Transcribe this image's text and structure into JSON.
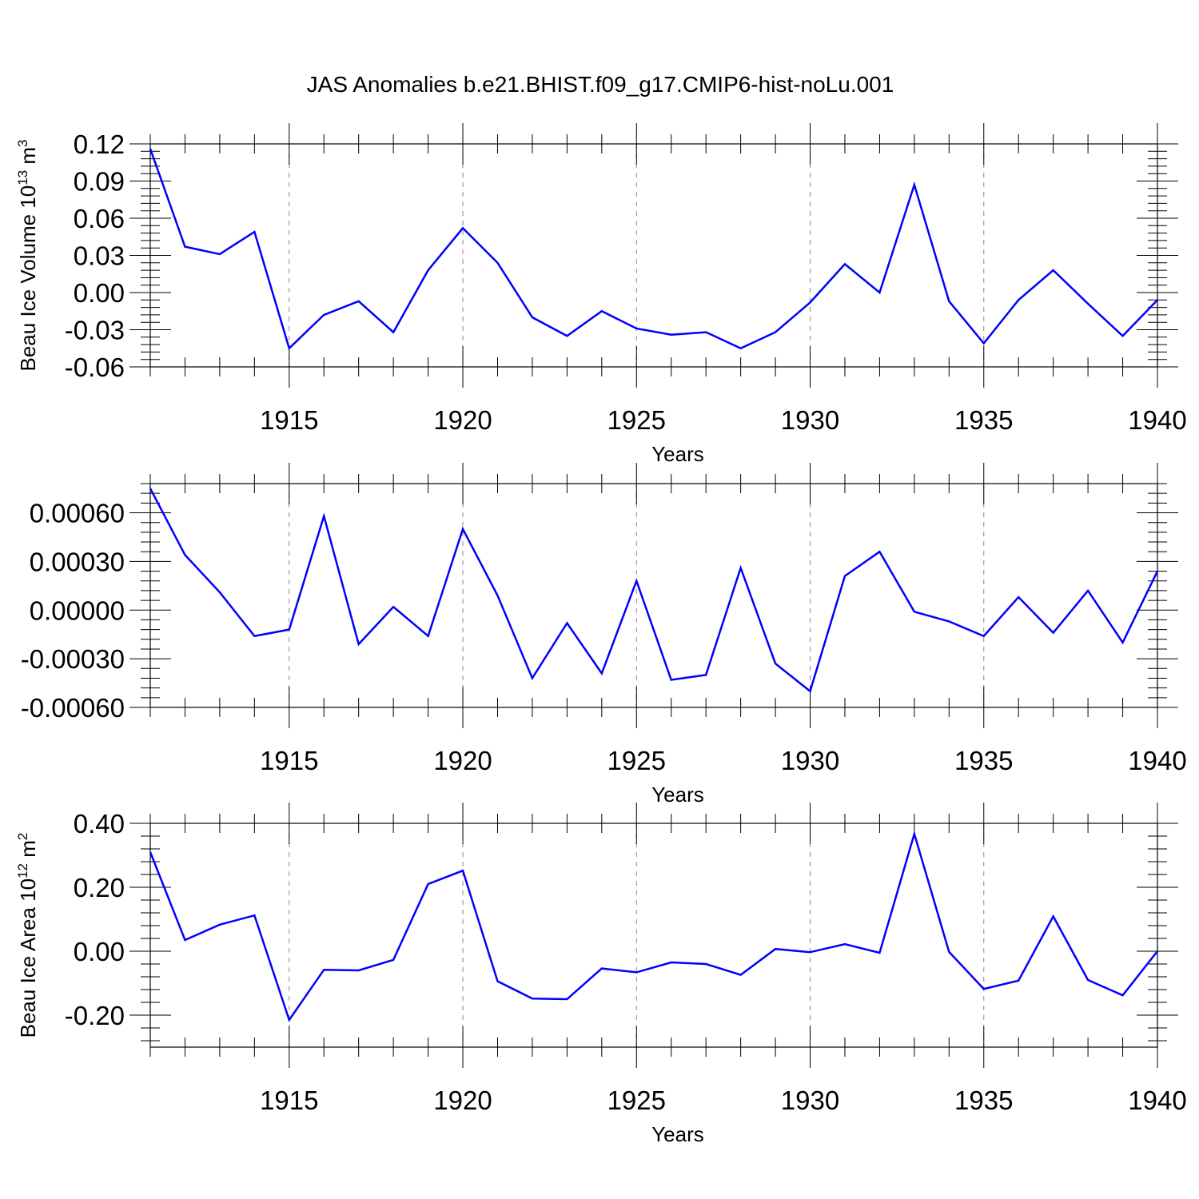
{
  "title": "JAS Anomalies b.e21.BHIST.f09_g17.CMIP6-hist-noLu.001",
  "colors": {
    "line": "#0000ff",
    "axes": "#000000",
    "grid": "#888888"
  },
  "chart_data": [
    {
      "type": "line",
      "ylabel": "Beau Ice Volume 10",
      "ylabel_sup": "13",
      "ylabel_unit": "m",
      "ylabel_unit_sup": "3",
      "xlabel": "Years",
      "xlim": [
        1911,
        1940
      ],
      "ylim": [
        -0.06,
        0.12
      ],
      "yticks": [
        -0.06,
        -0.03,
        0.0,
        0.03,
        0.06,
        0.09,
        0.12
      ],
      "ytick_labels": [
        "-0.06",
        "-0.03",
        "0.00",
        "0.03",
        "0.06",
        "0.09",
        "0.12"
      ],
      "xticks": [
        1915,
        1920,
        1925,
        1930,
        1935,
        1940
      ],
      "xtick_labels": [
        "1915",
        "1920",
        "1925",
        "1930",
        "1935",
        "1940"
      ],
      "grid": "vertical dashed at major x ticks",
      "x": [
        1911,
        1912,
        1913,
        1914,
        1915,
        1916,
        1917,
        1918,
        1919,
        1920,
        1921,
        1922,
        1923,
        1924,
        1925,
        1926,
        1927,
        1928,
        1929,
        1930,
        1931,
        1932,
        1933,
        1934,
        1935,
        1936,
        1937,
        1938,
        1939,
        1940
      ],
      "series": [
        {
          "values": [
            0.116,
            0.037,
            0.031,
            0.049,
            -0.045,
            -0.018,
            -0.007,
            -0.032,
            0.018,
            0.052,
            0.024,
            -0.02,
            -0.035,
            -0.015,
            -0.029,
            -0.034,
            -0.032,
            -0.045,
            -0.032,
            -0.008,
            0.023,
            0.0,
            0.087,
            -0.007,
            -0.041,
            -0.006,
            0.018,
            -0.009,
            -0.035,
            -0.006
          ]
        }
      ]
    },
    {
      "type": "line",
      "ylabel": "",
      "xlabel": "Years",
      "xlim": [
        1911,
        1940
      ],
      "ylim": [
        -0.0006,
        0.00078
      ],
      "yticks": [
        -0.0006,
        -0.0003,
        0.0,
        0.0003,
        0.0006
      ],
      "ytick_labels": [
        "-0.00060",
        "-0.00030",
        "0.00000",
        "0.00030",
        "0.00060"
      ],
      "xticks": [
        1915,
        1920,
        1925,
        1930,
        1935,
        1940
      ],
      "xtick_labels": [
        "1915",
        "1920",
        "1925",
        "1930",
        "1935",
        "1940"
      ],
      "grid": "vertical dashed at major x ticks",
      "x": [
        1911,
        1912,
        1913,
        1914,
        1915,
        1916,
        1917,
        1918,
        1919,
        1920,
        1921,
        1922,
        1923,
        1924,
        1925,
        1926,
        1927,
        1928,
        1929,
        1930,
        1931,
        1932,
        1933,
        1934,
        1935,
        1936,
        1937,
        1938,
        1939,
        1940
      ],
      "series": [
        {
          "values": [
            0.00075,
            0.00034,
            0.00011,
            -0.00016,
            -0.00012,
            0.00058,
            -0.00021,
            2e-05,
            -0.00016,
            0.0005,
            9e-05,
            -0.00042,
            -8e-05,
            -0.00039,
            0.00018,
            -0.00043,
            -0.0004,
            0.00026,
            -0.00033,
            -0.0005,
            0.00021,
            0.00036,
            -1e-05,
            -7e-05,
            -0.00016,
            8e-05,
            -0.00014,
            0.00012,
            -0.0002,
            0.00024
          ]
        }
      ]
    },
    {
      "type": "line",
      "ylabel": "Beau Ice Area 10",
      "ylabel_sup": "12",
      "ylabel_unit": "m",
      "ylabel_unit_sup": "2",
      "xlabel": "Years",
      "xlim": [
        1911,
        1940
      ],
      "ylim": [
        -0.3,
        0.4
      ],
      "yticks": [
        -0.2,
        0.0,
        0.2,
        0.4
      ],
      "ytick_labels": [
        "-0.20",
        "0.00",
        "0.20",
        "0.40"
      ],
      "xticks": [
        1915,
        1920,
        1925,
        1930,
        1935,
        1940
      ],
      "xtick_labels": [
        "1915",
        "1920",
        "1925",
        "1930",
        "1935",
        "1940"
      ],
      "grid": "vertical dashed at major x ticks",
      "x": [
        1911,
        1912,
        1913,
        1914,
        1915,
        1916,
        1917,
        1918,
        1919,
        1920,
        1921,
        1922,
        1923,
        1924,
        1925,
        1926,
        1927,
        1928,
        1929,
        1930,
        1931,
        1932,
        1933,
        1934,
        1935,
        1936,
        1937,
        1938,
        1939,
        1940
      ],
      "series": [
        {
          "values": [
            0.31,
            0.035,
            0.083,
            0.112,
            -0.215,
            -0.058,
            -0.06,
            -0.027,
            0.21,
            0.252,
            -0.094,
            -0.148,
            -0.15,
            -0.054,
            -0.066,
            -0.035,
            -0.04,
            -0.074,
            0.007,
            -0.003,
            0.022,
            -0.005,
            0.367,
            -0.002,
            -0.118,
            -0.092,
            0.109,
            -0.09,
            -0.138,
            0.0
          ]
        }
      ]
    }
  ]
}
